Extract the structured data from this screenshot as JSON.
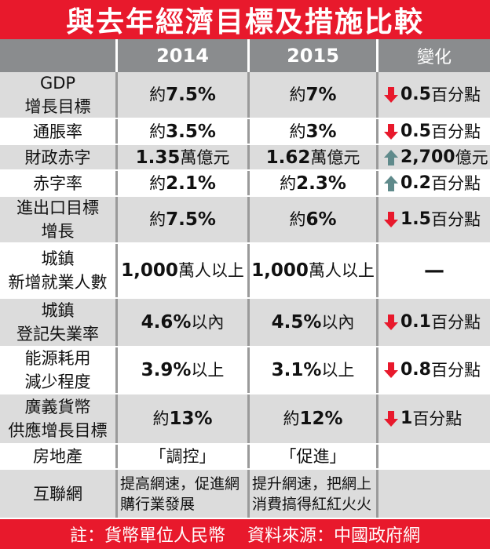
{
  "title": "與去年經濟目標及措施比較",
  "header": {
    "col0": "",
    "col1": "2014",
    "col2": "2015",
    "col3": "變化"
  },
  "colors": {
    "red": "#e8192c",
    "up": "#5f8a8b",
    "grey": "#8a8c8e"
  },
  "rows": [
    {
      "label": [
        "GDP",
        "增長目標"
      ],
      "p1": "約",
      "v1": "7.5%",
      "p2": "約",
      "v2": "7%",
      "dir": "down",
      "chg_num": "0.5",
      "chg_unit": "百分點"
    },
    {
      "label": [
        "通脹率"
      ],
      "p1": "約",
      "v1": "3.5%",
      "p2": "約",
      "v2": "3%",
      "dir": "down",
      "chg_num": "0.5",
      "chg_unit": "百分點"
    },
    {
      "label": [
        "財政赤字"
      ],
      "p1": "",
      "v1": "1.35",
      "s1": "萬億元",
      "p2": "",
      "v2": "1.62",
      "s2": "萬億元",
      "dir": "up",
      "chg_num": "2,700",
      "chg_unit": "億元"
    },
    {
      "label": [
        "赤字率"
      ],
      "p1": "約",
      "v1": "2.1%",
      "p2": "約",
      "v2": "2.3%",
      "dir": "up",
      "chg_num": "0.2",
      "chg_unit": "百分點"
    },
    {
      "label": [
        "進出口目標",
        "增長"
      ],
      "p1": "約",
      "v1": "7.5%",
      "p2": "約",
      "v2": "6%",
      "dir": "down",
      "chg_num": "1.5",
      "chg_unit": "百分點"
    },
    {
      "label": [
        "城鎮",
        "新增就業人數"
      ],
      "p1": "",
      "v1": "1,000",
      "s1": "萬人以上",
      "p2": "",
      "v2": "1,000",
      "s2": "萬人以上",
      "dir": "none",
      "chg_num": "—",
      "chg_unit": ""
    },
    {
      "label": [
        "城鎮",
        "登記失業率"
      ],
      "p1": "",
      "v1": "4.6%",
      "s1": " 以內",
      "p2": "",
      "v2": "4.5%",
      "s2": " 以內",
      "dir": "down",
      "chg_num": "0.1",
      "chg_unit": "百分點"
    },
    {
      "label": [
        "能源耗用",
        "減少程度"
      ],
      "p1": "",
      "v1": "3.9%",
      "s1": " 以上",
      "p2": "",
      "v2": "3.1%",
      "s2": " 以上",
      "dir": "down",
      "chg_num": "0.8",
      "chg_unit": "百分點"
    },
    {
      "label": [
        "廣義貨幣",
        "供應增長目標"
      ],
      "p1": "約",
      "v1": "13%",
      "p2": "約",
      "v2": "12%",
      "dir": "down",
      "chg_num": "1",
      "chg_unit": "百分點"
    },
    {
      "label": [
        "房地產"
      ],
      "text1": "「調控」",
      "text2": "「促進」",
      "dir": "none",
      "chg_num": "",
      "chg_unit": ""
    },
    {
      "label": [
        "互聯網"
      ],
      "text1": "提高網速，促進網購行業發展",
      "text2": "提升網速，把網上消費搞得紅紅火火",
      "dir": "none",
      "chg_num": "",
      "chg_unit": ""
    }
  ],
  "footer": {
    "note": "註：貨幣單位人民幣",
    "source": "資料來源：中國政府網"
  }
}
